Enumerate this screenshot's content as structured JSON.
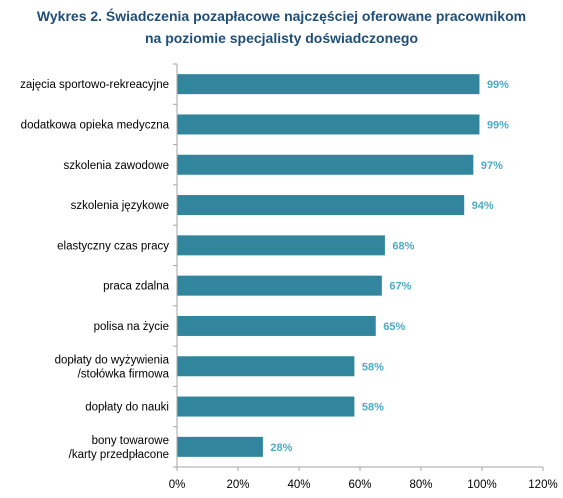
{
  "chart_data": {
    "type": "bar",
    "orientation": "horizontal",
    "title_line1": "Wykres 2. Świadczenia pozapłacowe najczęściej oferowane pracownikom",
    "title_line2": "na poziomie specjalisty doświadczonego",
    "categories": [
      [
        "zajęcia sportowo-rekreacyjne"
      ],
      [
        "dodatkowa opieka medyczna"
      ],
      [
        "szkolenia zawodowe"
      ],
      [
        "szkolenia językowe"
      ],
      [
        "elastyczny czas pracy"
      ],
      [
        "praca zdalna"
      ],
      [
        "polisa na życie"
      ],
      [
        "dopłaty do wyżywienia",
        "/stołówka firmowa"
      ],
      [
        "dopłaty do nauki"
      ],
      [
        "bony towarowe",
        "/karty przedpłacone"
      ]
    ],
    "values": [
      99,
      99,
      97,
      94,
      68,
      67,
      65,
      58,
      58,
      28
    ],
    "data_labels": [
      "99%",
      "99%",
      "97%",
      "94%",
      "68%",
      "67%",
      "65%",
      "58%",
      "58%",
      "28%"
    ],
    "xlim": [
      0,
      120
    ],
    "xticks": [
      "0%",
      "20%",
      "40%",
      "60%",
      "80%",
      "100%",
      "120%"
    ],
    "grid": false,
    "legend": "none",
    "colors": {
      "bar": "#31859c",
      "label": "#4bacc6",
      "axis": "#a6a6a6",
      "title": "#1f4e79"
    }
  }
}
